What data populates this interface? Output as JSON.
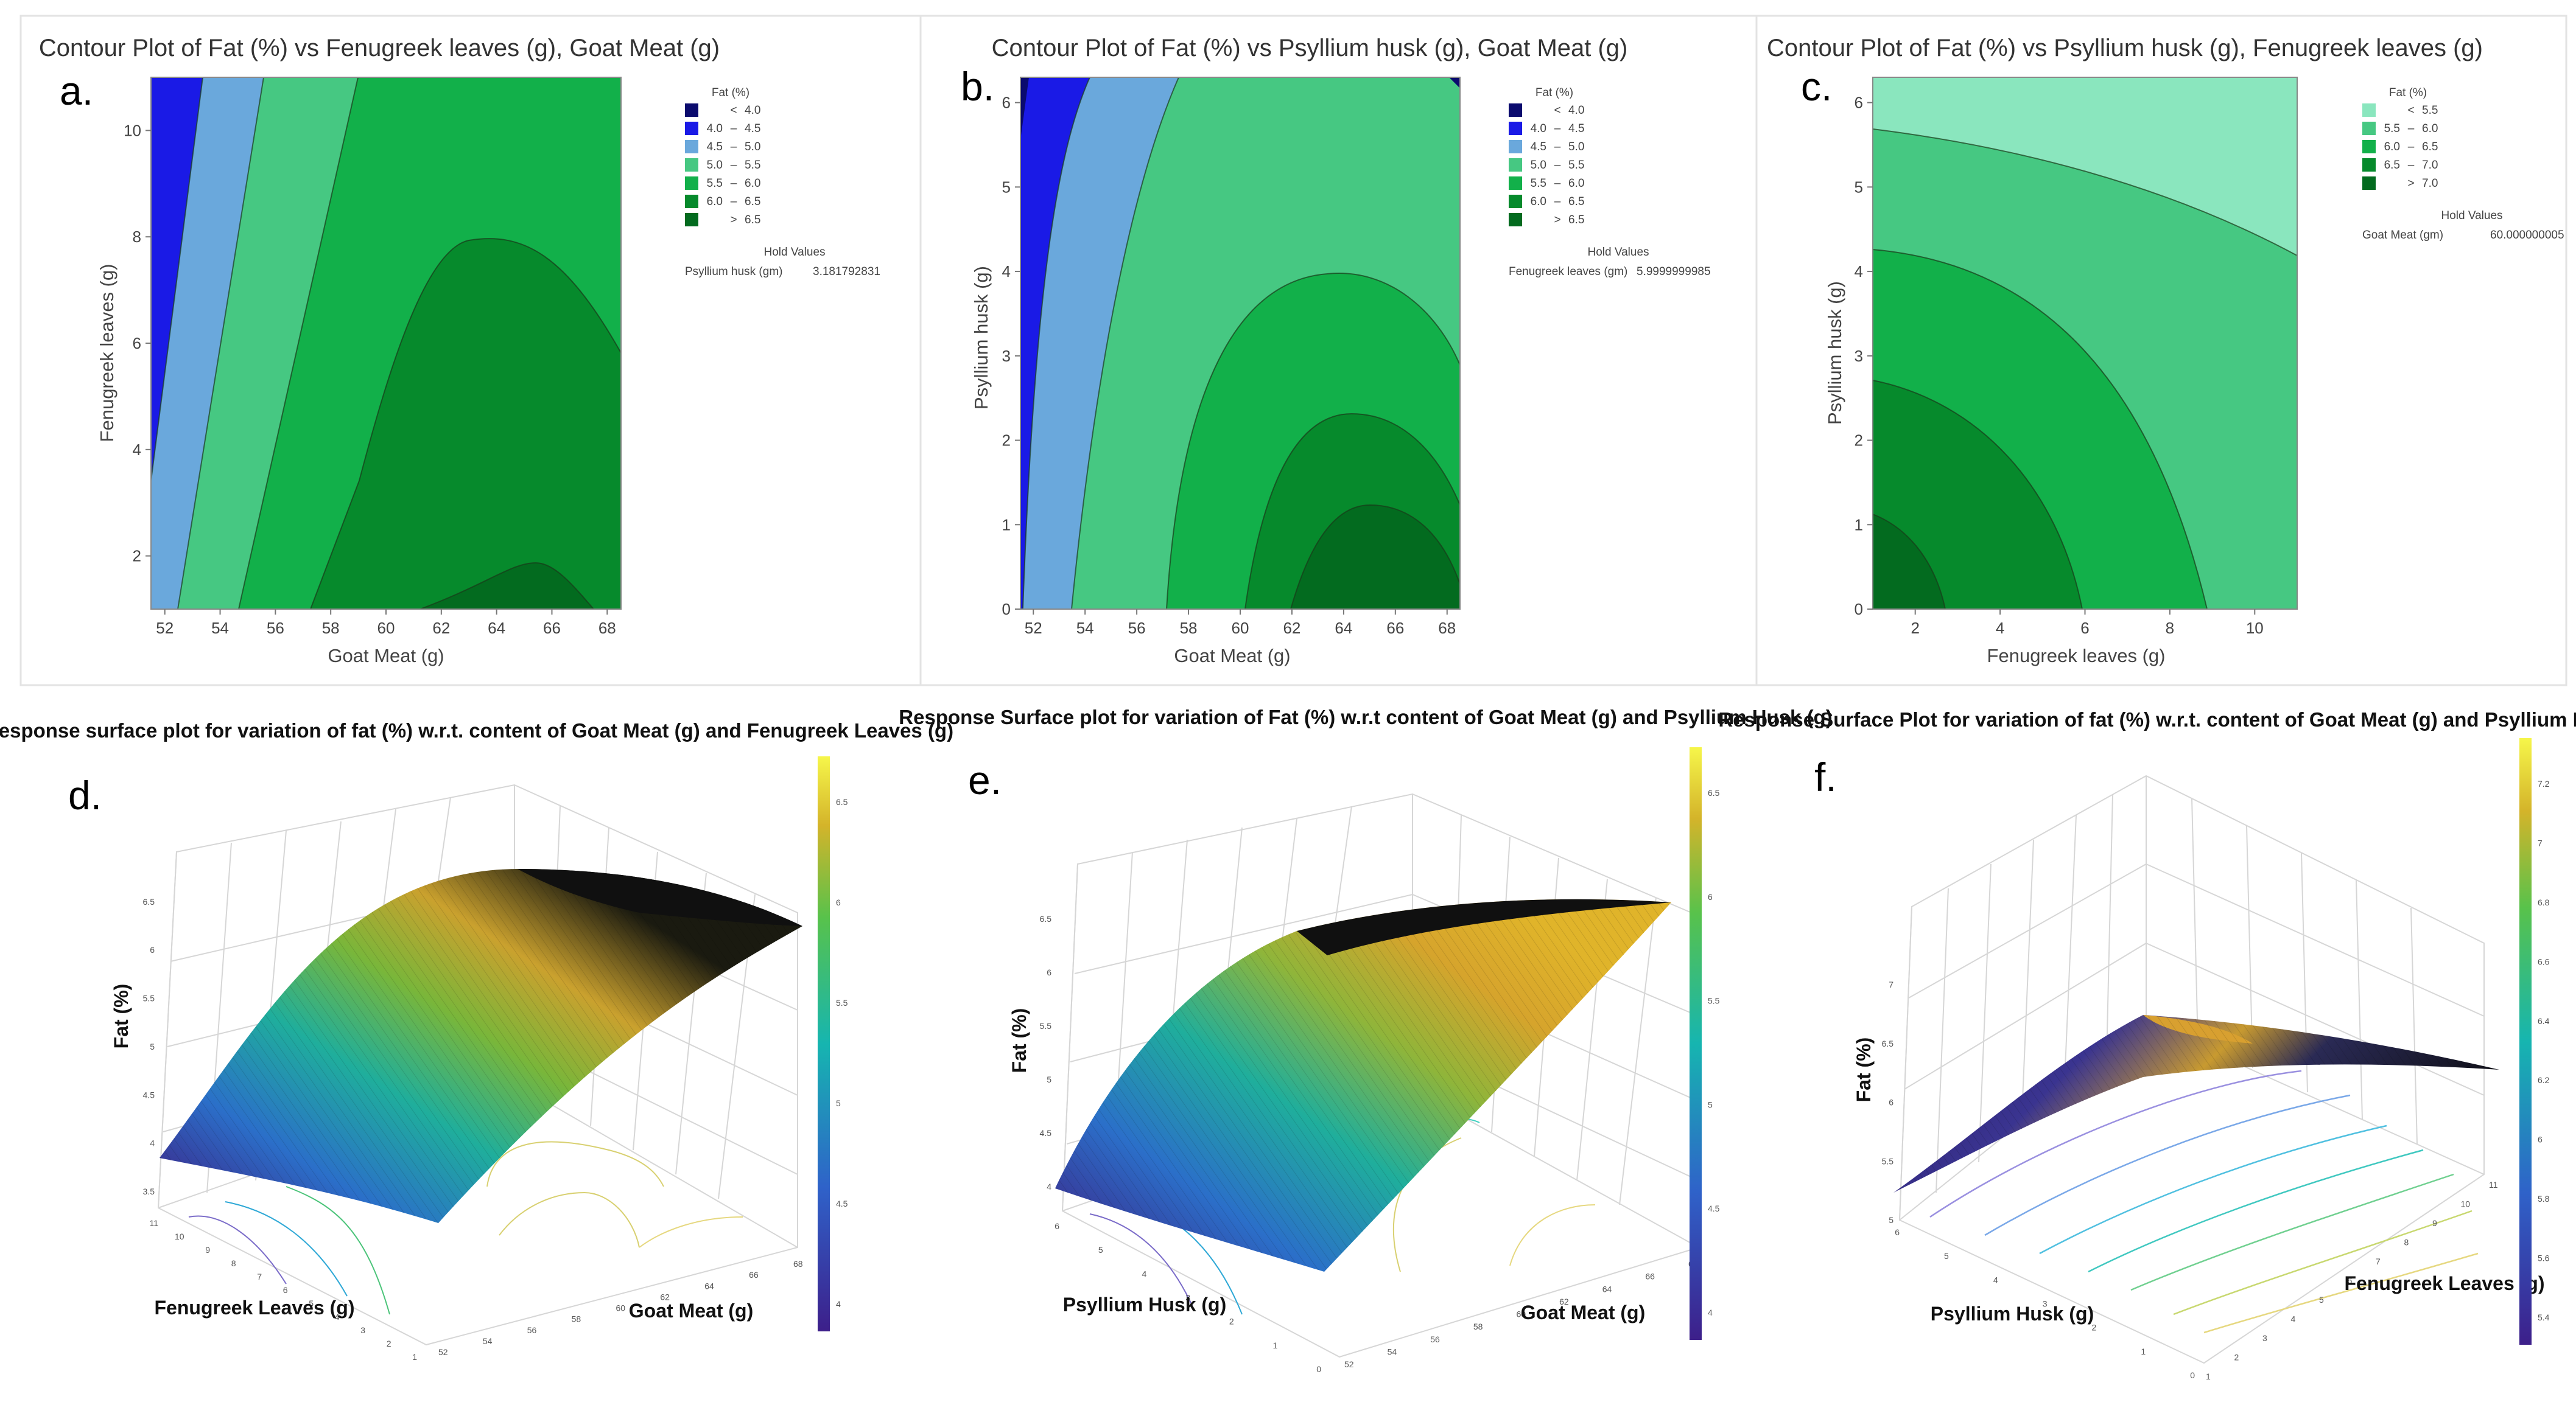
{
  "figure": {
    "panel_letters": [
      "a.",
      "b.",
      "c.",
      "d.",
      "e.",
      "f."
    ]
  },
  "chart_data": [
    {
      "panel": "a.",
      "type": "contour",
      "title": "Contour Plot of Fat (%) vs Fenugreek leaves (g), Goat Meat (g)",
      "xlabel": "Goat Meat (g)",
      "ylabel": "Fenugreek leaves (g)",
      "xlim": [
        51.5,
        68.5
      ],
      "ylim": [
        1,
        11
      ],
      "xticks": [
        "52",
        "54",
        "56",
        "58",
        "60",
        "62",
        "64",
        "66",
        "68"
      ],
      "yticks": [
        "2",
        "4",
        "6",
        "8",
        "10"
      ],
      "legend_title": "Fat (%)",
      "legend": [
        {
          "lo": "",
          "sym": "<",
          "hi": "4.0",
          "color": "#0b0b6e"
        },
        {
          "lo": "4.0",
          "sym": "–",
          "hi": "4.5",
          "color": "#1a1ae6"
        },
        {
          "lo": "4.5",
          "sym": "–",
          "hi": "5.0",
          "color": "#6aa8dc"
        },
        {
          "lo": "5.0",
          "sym": "–",
          "hi": "5.5",
          "color": "#46c882"
        },
        {
          "lo": "5.5",
          "sym": "–",
          "hi": "6.0",
          "color": "#12b04a"
        },
        {
          "lo": "6.0",
          "sym": "–",
          "hi": "6.5",
          "color": "#068a2c"
        },
        {
          "lo": "",
          "sym": ">",
          "hi": "6.5",
          "color": "#036b1f"
        }
      ],
      "hold_title": "Hold Values",
      "hold_label": "Psyllium husk (gm)",
      "hold_value": "3.181792831"
    },
    {
      "panel": "b.",
      "type": "contour",
      "title": "Contour Plot of Fat (%) vs Psyllium husk (g), Goat Meat (g)",
      "xlabel": "Goat Meat (g)",
      "ylabel": "Psyllium husk (g)",
      "xlim": [
        51.5,
        68.5
      ],
      "ylim": [
        0,
        6.3
      ],
      "xticks": [
        "52",
        "54",
        "56",
        "58",
        "60",
        "62",
        "64",
        "66",
        "68"
      ],
      "yticks": [
        "0",
        "1",
        "2",
        "3",
        "4",
        "5",
        "6"
      ],
      "legend_title": "Fat (%)",
      "legend": [
        {
          "lo": "",
          "sym": "<",
          "hi": "4.0",
          "color": "#0b0b6e"
        },
        {
          "lo": "4.0",
          "sym": "–",
          "hi": "4.5",
          "color": "#1a1ae6"
        },
        {
          "lo": "4.5",
          "sym": "–",
          "hi": "5.0",
          "color": "#6aa8dc"
        },
        {
          "lo": "5.0",
          "sym": "–",
          "hi": "5.5",
          "color": "#46c882"
        },
        {
          "lo": "5.5",
          "sym": "–",
          "hi": "6.0",
          "color": "#12b04a"
        },
        {
          "lo": "6.0",
          "sym": "–",
          "hi": "6.5",
          "color": "#068a2c"
        },
        {
          "lo": "",
          "sym": ">",
          "hi": "6.5",
          "color": "#036b1f"
        }
      ],
      "hold_title": "Hold Values",
      "hold_label": "Fenugreek leaves (gm)",
      "hold_value": "5.9999999985"
    },
    {
      "panel": "c.",
      "type": "contour",
      "title": "Contour Plot of Fat (%) vs Psyllium husk (g), Fenugreek leaves (g)",
      "xlabel": "Fenugreek leaves (g)",
      "ylabel": "Psyllium husk (g)",
      "xlim": [
        1,
        11
      ],
      "ylim": [
        0,
        6.3
      ],
      "xticks": [
        "2",
        "4",
        "6",
        "8",
        "10"
      ],
      "yticks": [
        "0",
        "1",
        "2",
        "3",
        "4",
        "5",
        "6"
      ],
      "legend_title": "Fat (%)",
      "legend": [
        {
          "lo": "",
          "sym": "<",
          "hi": "5.5",
          "color": "#8ae6be"
        },
        {
          "lo": "5.5",
          "sym": "–",
          "hi": "6.0",
          "color": "#46c882"
        },
        {
          "lo": "6.0",
          "sym": "–",
          "hi": "6.5",
          "color": "#12b04a"
        },
        {
          "lo": "6.5",
          "sym": "–",
          "hi": "7.0",
          "color": "#068a2c"
        },
        {
          "lo": "",
          "sym": ">",
          "hi": "7.0",
          "color": "#036b1f"
        }
      ],
      "hold_title": "Hold Values",
      "hold_label": "Goat Meat (gm)",
      "hold_value": "60.000000005"
    },
    {
      "panel": "d.",
      "type": "surface3d",
      "title": "Response surface plot for variation of fat (%) w.r.t. content of Goat Meat (g) and Fenugreek Leaves (g)",
      "xlabel": "Goat Meat (g)",
      "ylabel": "Fenugreek Leaves (g)",
      "zlabel": "Fat (%)",
      "xticks": [
        "52",
        "54",
        "56",
        "58",
        "60",
        "62",
        "64",
        "66",
        "68"
      ],
      "yticks": [
        "1",
        "2",
        "3",
        "4",
        "5",
        "6",
        "7",
        "8",
        "9",
        "10",
        "11"
      ],
      "zticks": [
        "3.5",
        "4",
        "4.5",
        "5",
        "5.5",
        "6",
        "6.5"
      ],
      "colorbar_ticks": [
        "4",
        "4.5",
        "5",
        "5.5",
        "6",
        "6.5"
      ],
      "zlim": [
        3.5,
        6.7
      ]
    },
    {
      "panel": "e.",
      "type": "surface3d",
      "title": "Response Surface plot for variation of Fat (%) w.r.t content of Goat Meat (g) and Psyllium Husk (g)",
      "xlabel": "Goat Meat (g)",
      "ylabel": "Psyllium Husk (g)",
      "zlabel": "Fat (%)",
      "xticks": [
        "52",
        "54",
        "56",
        "58",
        "60",
        "62",
        "64",
        "66",
        "68"
      ],
      "yticks": [
        "0",
        "1",
        "2",
        "3",
        "4",
        "5",
        "6"
      ],
      "zticks": [
        "4",
        "4.5",
        "5",
        "5.5",
        "6",
        "6.5"
      ],
      "colorbar_ticks": [
        "4",
        "4.5",
        "5",
        "5.5",
        "6",
        "6.5"
      ],
      "zlim": [
        3.8,
        6.7
      ]
    },
    {
      "panel": "f.",
      "type": "surface3d",
      "title": "Response Surface Plot for variation of fat (%) w.r.t. content of Goat Meat (g) and Psyllium Husk (g)",
      "xlabel": "Fenugreek Leaves (g)",
      "ylabel": "Psyllium Husk (g)",
      "zlabel": "Fat (%)",
      "xticks": [
        "1",
        "2",
        "3",
        "4",
        "5",
        "6",
        "7",
        "8",
        "9",
        "10",
        "11"
      ],
      "yticks": [
        "0",
        "1",
        "2",
        "3",
        "4",
        "5",
        "6"
      ],
      "zticks": [
        "5",
        "5.5",
        "6",
        "6.5",
        "7"
      ],
      "colorbar_ticks": [
        "5.4",
        "5.6",
        "5.8",
        "6",
        "6.2",
        "6.4",
        "6.6",
        "6.8",
        "7",
        "7.2"
      ],
      "zlim": [
        5,
        7.3
      ]
    }
  ]
}
